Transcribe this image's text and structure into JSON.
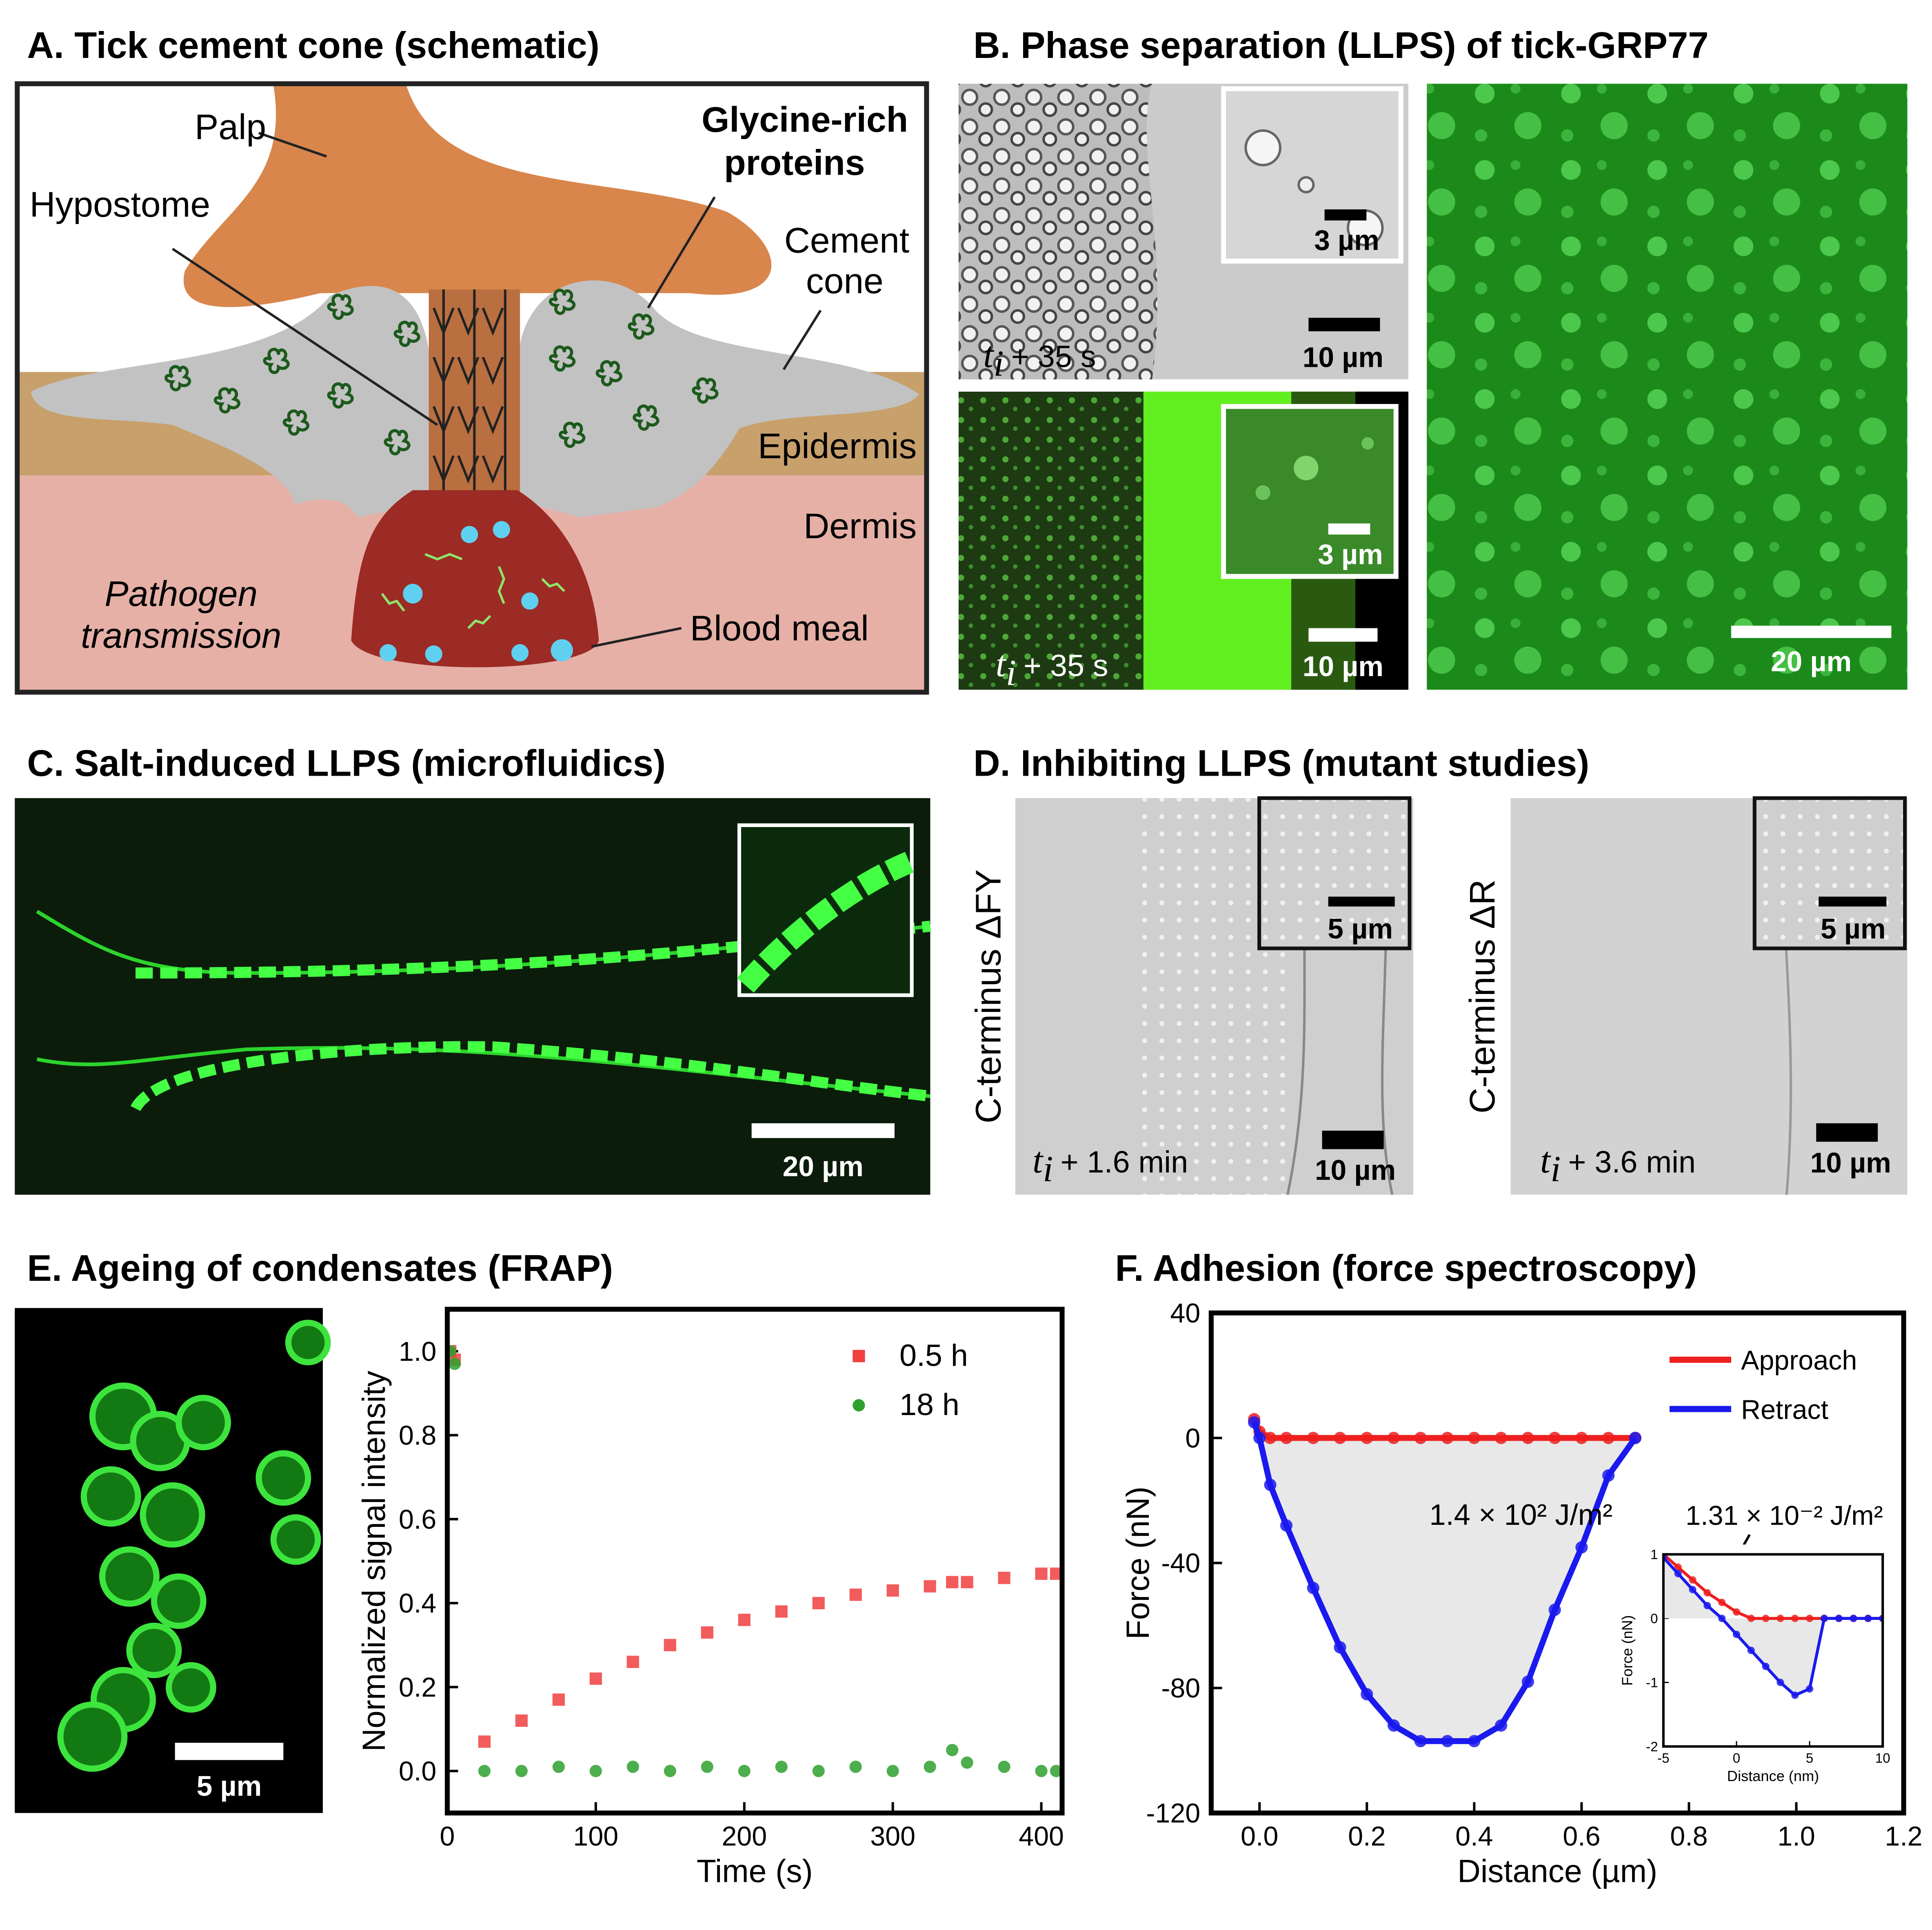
{
  "panels": {
    "time_symbol": "t",
    "time_subscript": "i",
    "a": {
      "title": "A. Tick cement cone (schematic)",
      "palp": "Palp",
      "grp_1": "Glycine-rich",
      "grp_2": "proteins",
      "hypostome": "Hypostome",
      "cement_1": "Cement",
      "cement_2": "cone",
      "epidermis": "Epidermis",
      "dermis": "Dermis",
      "pathogen_1": "Pathogen",
      "pathogen_2": "transmission",
      "blood": "Blood meal"
    },
    "b": {
      "title": "B. Phase separation (LLPS) of tick-GRP77",
      "top_inset_scale": "3 µm",
      "top_scale": "10 µm",
      "top_time": "+ 35 s",
      "bottom_inset_scale": "3 µm",
      "bottom_scale": "10 µm",
      "bottom_time": "+ 35 s",
      "right_scale": "20 µm"
    },
    "c": {
      "title": "C. Salt-induced LLPS (microfluidics)",
      "scale": "20 µm"
    },
    "d": {
      "title": "D. Inhibiting LLPS (mutant studies)",
      "left_label": "C-terminus ΔFY",
      "left_inset_scale": "5 µm",
      "left_scale": "10 µm",
      "left_time": "+ 1.6 min",
      "right_label": "C-terminus ΔR",
      "right_inset_scale": "5 µm",
      "right_scale": "10 µm",
      "right_time": "+ 3.6 min"
    },
    "e": {
      "title": "E. Ageing of condensates (FRAP)",
      "image_scale": "5 µm"
    },
    "f": {
      "title": "F. Adhesion (force spectroscopy)"
    }
  },
  "chart_data": [
    {
      "type": "scatter",
      "xlabel": "Time (s)",
      "ylabel": "Normalized signal intensity",
      "x": [
        2,
        5,
        25,
        50,
        75,
        100,
        125,
        150,
        175,
        200,
        225,
        250,
        275,
        300,
        325,
        340,
        350,
        375,
        400,
        410
      ],
      "series": [
        {
          "name": "0.5 h",
          "color": "#f04040",
          "marker": "square",
          "values": [
            1.0,
            0.98,
            0.07,
            0.12,
            0.17,
            0.22,
            0.26,
            0.3,
            0.33,
            0.36,
            0.38,
            0.4,
            0.42,
            0.43,
            0.44,
            0.45,
            0.45,
            0.46,
            0.47,
            0.47
          ]
        },
        {
          "name": "18 h",
          "color": "#2ea02e",
          "marker": "circle",
          "values": [
            1.0,
            0.97,
            0.0,
            0.0,
            0.01,
            0.0,
            0.01,
            0.0,
            0.01,
            0.0,
            0.01,
            0.0,
            0.01,
            0.0,
            0.01,
            0.05,
            0.02,
            0.01,
            0.0,
            0.0
          ]
        }
      ],
      "xlim": [
        0,
        414
      ],
      "xticks": [
        0,
        100,
        200,
        300,
        400
      ],
      "ylim": [
        -0.1,
        1.1
      ],
      "yticks": [
        {
          "value": 0,
          "label": "0.0"
        },
        0.2,
        0.4,
        0.6,
        0.8,
        {
          "value": 1,
          "label": "1.0"
        }
      ],
      "legend": "upper right"
    },
    {
      "type": "line",
      "xlabel": "Distance (µm)",
      "ylabel": "Force (nN)",
      "x": [
        -0.01,
        0.0,
        0.02,
        0.05,
        0.1,
        0.15,
        0.2,
        0.25,
        0.3,
        0.35,
        0.4,
        0.45,
        0.5,
        0.55,
        0.6,
        0.65,
        0.7
      ],
      "series": [
        {
          "name": "Approach",
          "color": "#ee2020",
          "values": [
            6,
            2,
            0,
            0,
            0,
            0,
            0,
            0,
            0,
            0,
            0,
            0,
            0,
            0,
            0,
            0,
            0
          ]
        },
        {
          "name": "Retract",
          "color": "#1a1aee",
          "values": [
            5,
            0,
            -15,
            -28,
            -48,
            -67,
            -82,
            -92,
            -97,
            -97,
            -97,
            -92,
            -78,
            -55,
            -35,
            -12,
            0
          ]
        }
      ],
      "xlim": [
        -0.09,
        1.2
      ],
      "xticks": [
        {
          "value": 0,
          "label": "0.0"
        },
        0.2,
        0.4,
        0.6,
        0.8,
        {
          "value": 1,
          "label": "1.0"
        },
        1.2
      ],
      "ylim": [
        -120,
        40
      ],
      "yticks": [
        -120,
        -80,
        -40,
        0,
        40
      ],
      "legend": "upper right",
      "annotations": [
        "1.4 × 10² J/m²",
        "1.31 × 10⁻² J/m²"
      ]
    },
    {
      "type": "line",
      "xlabel": "Distance (nm)",
      "ylabel": "Force (nN)",
      "x": [
        -5,
        -4,
        -3,
        -2,
        -1,
        0,
        1,
        2,
        3,
        4,
        5,
        6,
        7,
        8,
        9,
        10
      ],
      "series": [
        {
          "name": "Approach",
          "color": "#ee2020",
          "values": [
            1,
            0.8,
            0.6,
            0.4,
            0.25,
            0.1,
            0,
            0,
            0,
            0,
            0,
            0,
            0,
            0,
            0,
            0
          ]
        },
        {
          "name": "Retract",
          "color": "#1a1aee",
          "values": [
            0.95,
            0.7,
            0.45,
            0.2,
            0,
            -0.25,
            -0.5,
            -0.75,
            -1.0,
            -1.2,
            -1.1,
            0,
            0,
            0,
            0,
            0
          ]
        }
      ],
      "xlim": [
        -5,
        10
      ],
      "xticks": [
        -5,
        0,
        5,
        10
      ],
      "ylim": [
        -2,
        1
      ],
      "yticks": [
        -2,
        -1,
        0,
        1
      ]
    }
  ]
}
